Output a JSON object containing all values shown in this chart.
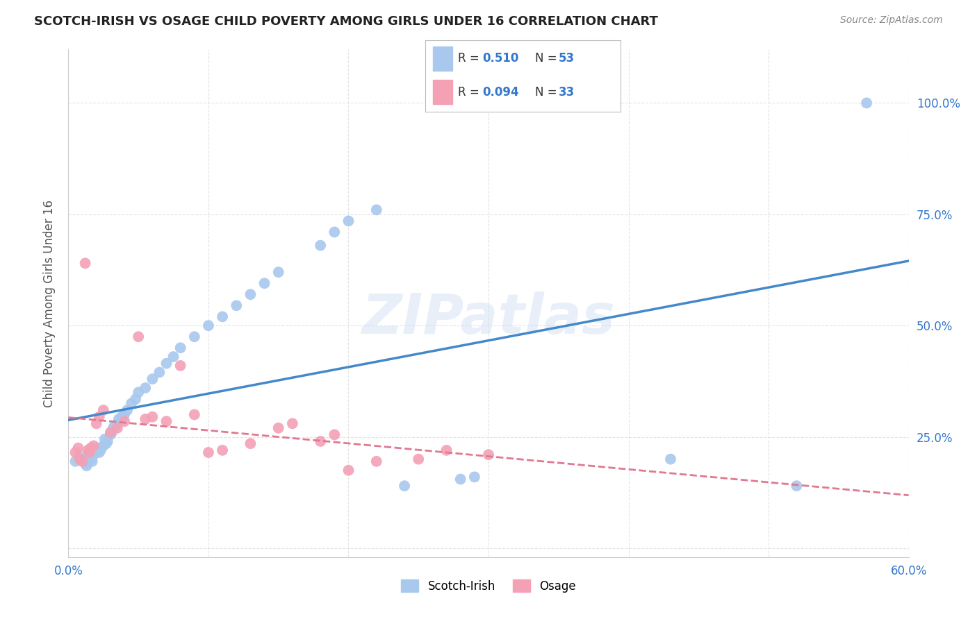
{
  "title": "SCOTCH-IRISH VS OSAGE CHILD POVERTY AMONG GIRLS UNDER 16 CORRELATION CHART",
  "source": "Source: ZipAtlas.com",
  "ylabel": "Child Poverty Among Girls Under 16",
  "xlim": [
    0.0,
    0.6
  ],
  "ylim": [
    -0.02,
    1.12
  ],
  "scotch_irish_color": "#A8C8EE",
  "osage_color": "#F4A0B5",
  "regression_scotch_color": "#4488CC",
  "regression_osage_color": "#E07890",
  "watermark": "ZIPatlas",
  "background_color": "#FFFFFF",
  "grid_color": "#DDDDDD",
  "scotch_irish_x": [
    0.005,
    0.008,
    0.01,
    0.012,
    0.013,
    0.015,
    0.015,
    0.016,
    0.017,
    0.018,
    0.02,
    0.022,
    0.022,
    0.023,
    0.025,
    0.026,
    0.027,
    0.028,
    0.03,
    0.031,
    0.032,
    0.033,
    0.035,
    0.036,
    0.038,
    0.04,
    0.042,
    0.045,
    0.048,
    0.05,
    0.055,
    0.06,
    0.065,
    0.07,
    0.075,
    0.08,
    0.09,
    0.1,
    0.11,
    0.12,
    0.13,
    0.14,
    0.15,
    0.18,
    0.19,
    0.2,
    0.22,
    0.24,
    0.28,
    0.29,
    0.43,
    0.52,
    0.57
  ],
  "scotch_irish_y": [
    0.195,
    0.205,
    0.2,
    0.19,
    0.185,
    0.21,
    0.215,
    0.2,
    0.195,
    0.21,
    0.22,
    0.215,
    0.225,
    0.22,
    0.23,
    0.245,
    0.235,
    0.24,
    0.255,
    0.26,
    0.27,
    0.275,
    0.28,
    0.29,
    0.295,
    0.3,
    0.31,
    0.325,
    0.335,
    0.35,
    0.36,
    0.38,
    0.395,
    0.415,
    0.43,
    0.45,
    0.475,
    0.5,
    0.52,
    0.545,
    0.57,
    0.595,
    0.62,
    0.68,
    0.71,
    0.735,
    0.76,
    0.14,
    0.155,
    0.16,
    0.2,
    0.14,
    1.0
  ],
  "osage_x": [
    0.005,
    0.007,
    0.008,
    0.01,
    0.012,
    0.014,
    0.015,
    0.016,
    0.018,
    0.02,
    0.022,
    0.025,
    0.03,
    0.035,
    0.04,
    0.05,
    0.055,
    0.06,
    0.07,
    0.08,
    0.09,
    0.1,
    0.11,
    0.13,
    0.15,
    0.16,
    0.18,
    0.19,
    0.2,
    0.22,
    0.25,
    0.27,
    0.3
  ],
  "osage_y": [
    0.215,
    0.225,
    0.2,
    0.195,
    0.64,
    0.22,
    0.215,
    0.225,
    0.23,
    0.28,
    0.295,
    0.31,
    0.26,
    0.27,
    0.285,
    0.475,
    0.29,
    0.295,
    0.285,
    0.41,
    0.3,
    0.215,
    0.22,
    0.235,
    0.27,
    0.28,
    0.24,
    0.255,
    0.175,
    0.195,
    0.2,
    0.22,
    0.21
  ],
  "legend_R1": "0.510",
  "legend_N1": "53",
  "legend_R2": "0.094",
  "legend_N2": "33"
}
